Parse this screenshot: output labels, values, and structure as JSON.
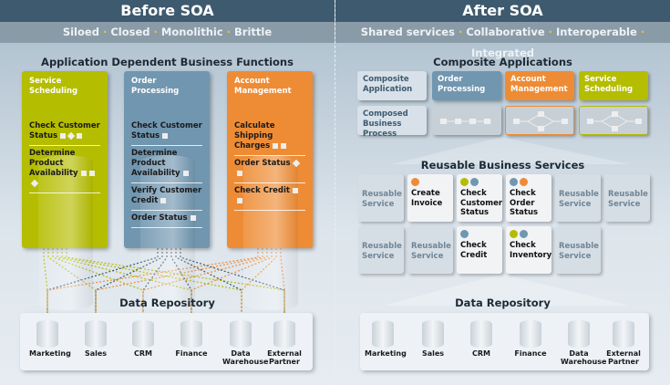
{
  "colors": {
    "green": "#b5bd00",
    "blue": "#7196b0",
    "orange": "#ee8c35",
    "header": "#3d5a6f"
  },
  "before": {
    "title": "Before SOA",
    "tags": [
      "Siloed",
      "Closed",
      "Monolithic",
      "Brittle"
    ],
    "section_title": "Application Dependent Business Functions",
    "columns": [
      {
        "title": "Service Scheduling",
        "items": [
          {
            "label": "Check Customer Status",
            "marks": "sds"
          },
          {
            "label": "Determine Product Availability",
            "marks": "ssd"
          }
        ]
      },
      {
        "title": "Order Processing",
        "items": [
          {
            "label": "Check Customer Status",
            "marks": "s"
          },
          {
            "label": "Determine Product Availability",
            "marks": "s"
          },
          {
            "label": "Verify Customer Credit",
            "marks": "s"
          },
          {
            "label": "Order Status",
            "marks": "s"
          }
        ]
      },
      {
        "title": "Account Management",
        "items": [
          {
            "label": "Calculate Shipping Charges",
            "marks": "ss"
          },
          {
            "label": "Order Status",
            "marks": "ds"
          },
          {
            "label": "Check Credit",
            "marks": "ss"
          }
        ]
      }
    ],
    "repo_title": "Data Repository",
    "repos": [
      "Marketing",
      "Sales",
      "CRM",
      "Finance",
      "Data Warehouse",
      "External Partner"
    ]
  },
  "after": {
    "title": "After SOA",
    "tags": [
      "Shared services",
      "Collaborative",
      "Interoperable",
      "Integrated"
    ],
    "section_title": "Composite Applications",
    "row_labels": [
      "Composite Application",
      "Composed Business Process"
    ],
    "apps": [
      "Order Processing",
      "Account Management",
      "Service Scheduling"
    ],
    "services_title": "Reusable Business Services",
    "services": [
      {
        "label": "Reusable Service",
        "dots": []
      },
      {
        "label": "Create Invoice",
        "dots": [
          "orange"
        ]
      },
      {
        "label": "Check Customer Status",
        "dots": [
          "green",
          "blue"
        ]
      },
      {
        "label": "Check Order Status",
        "dots": [
          "blue",
          "orange"
        ]
      },
      {
        "label": "Reusable Service",
        "dots": []
      },
      {
        "label": "Reusable Service",
        "dots": []
      },
      {
        "label": "Reusable Service",
        "dots": []
      },
      {
        "label": "Reusable Service",
        "dots": []
      },
      {
        "label": "Check Credit",
        "dots": [
          "blue"
        ]
      },
      {
        "label": "Check Inventory",
        "dots": [
          "green",
          "blue"
        ]
      },
      {
        "label": "Reusable Service",
        "dots": []
      }
    ],
    "repo_title": "Data Repository",
    "repos": [
      "Marketing",
      "Sales",
      "CRM",
      "Finance",
      "Data Warehouse",
      "External Partner"
    ]
  }
}
